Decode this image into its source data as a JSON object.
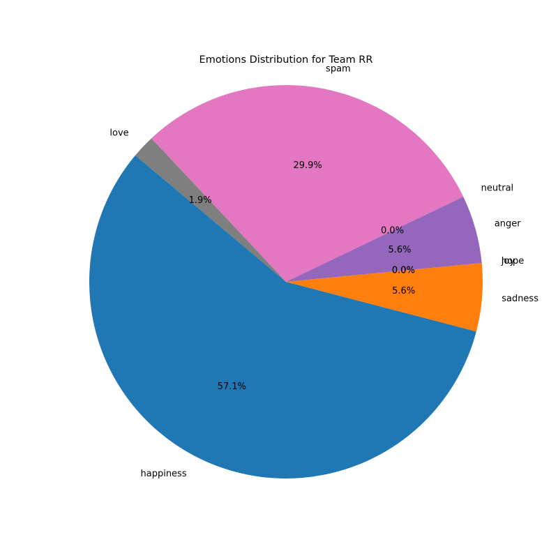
{
  "chart_data": {
    "type": "pie",
    "title": "Emotions Distribution for Team RR",
    "start_angle_deg": 140,
    "direction": "counterclockwise",
    "slices": [
      {
        "label": "happiness",
        "value": 57.1,
        "pct_text": "57.1%",
        "color": "#1f77b4"
      },
      {
        "label": "sadness",
        "value": 5.6,
        "pct_text": "5.6%",
        "color": "#ff7f0e"
      },
      {
        "label": "hope",
        "value": 0.0,
        "pct_text": "0.0%",
        "color": "#2ca02c"
      },
      {
        "label": "joy",
        "value": 0.0,
        "pct_text": "0.0%",
        "color": "#d62728"
      },
      {
        "label": "anger",
        "value": 5.6,
        "pct_text": "5.6%",
        "color": "#9467bd"
      },
      {
        "label": "neutral",
        "value": 0.0,
        "pct_text": "0.0%",
        "color": "#8c564b"
      },
      {
        "label": "spam",
        "value": 29.9,
        "pct_text": "29.9%",
        "color": "#e377c2"
      },
      {
        "label": "love",
        "value": 1.9,
        "pct_text": "1.9%",
        "color": "#7f7f7f"
      }
    ]
  }
}
